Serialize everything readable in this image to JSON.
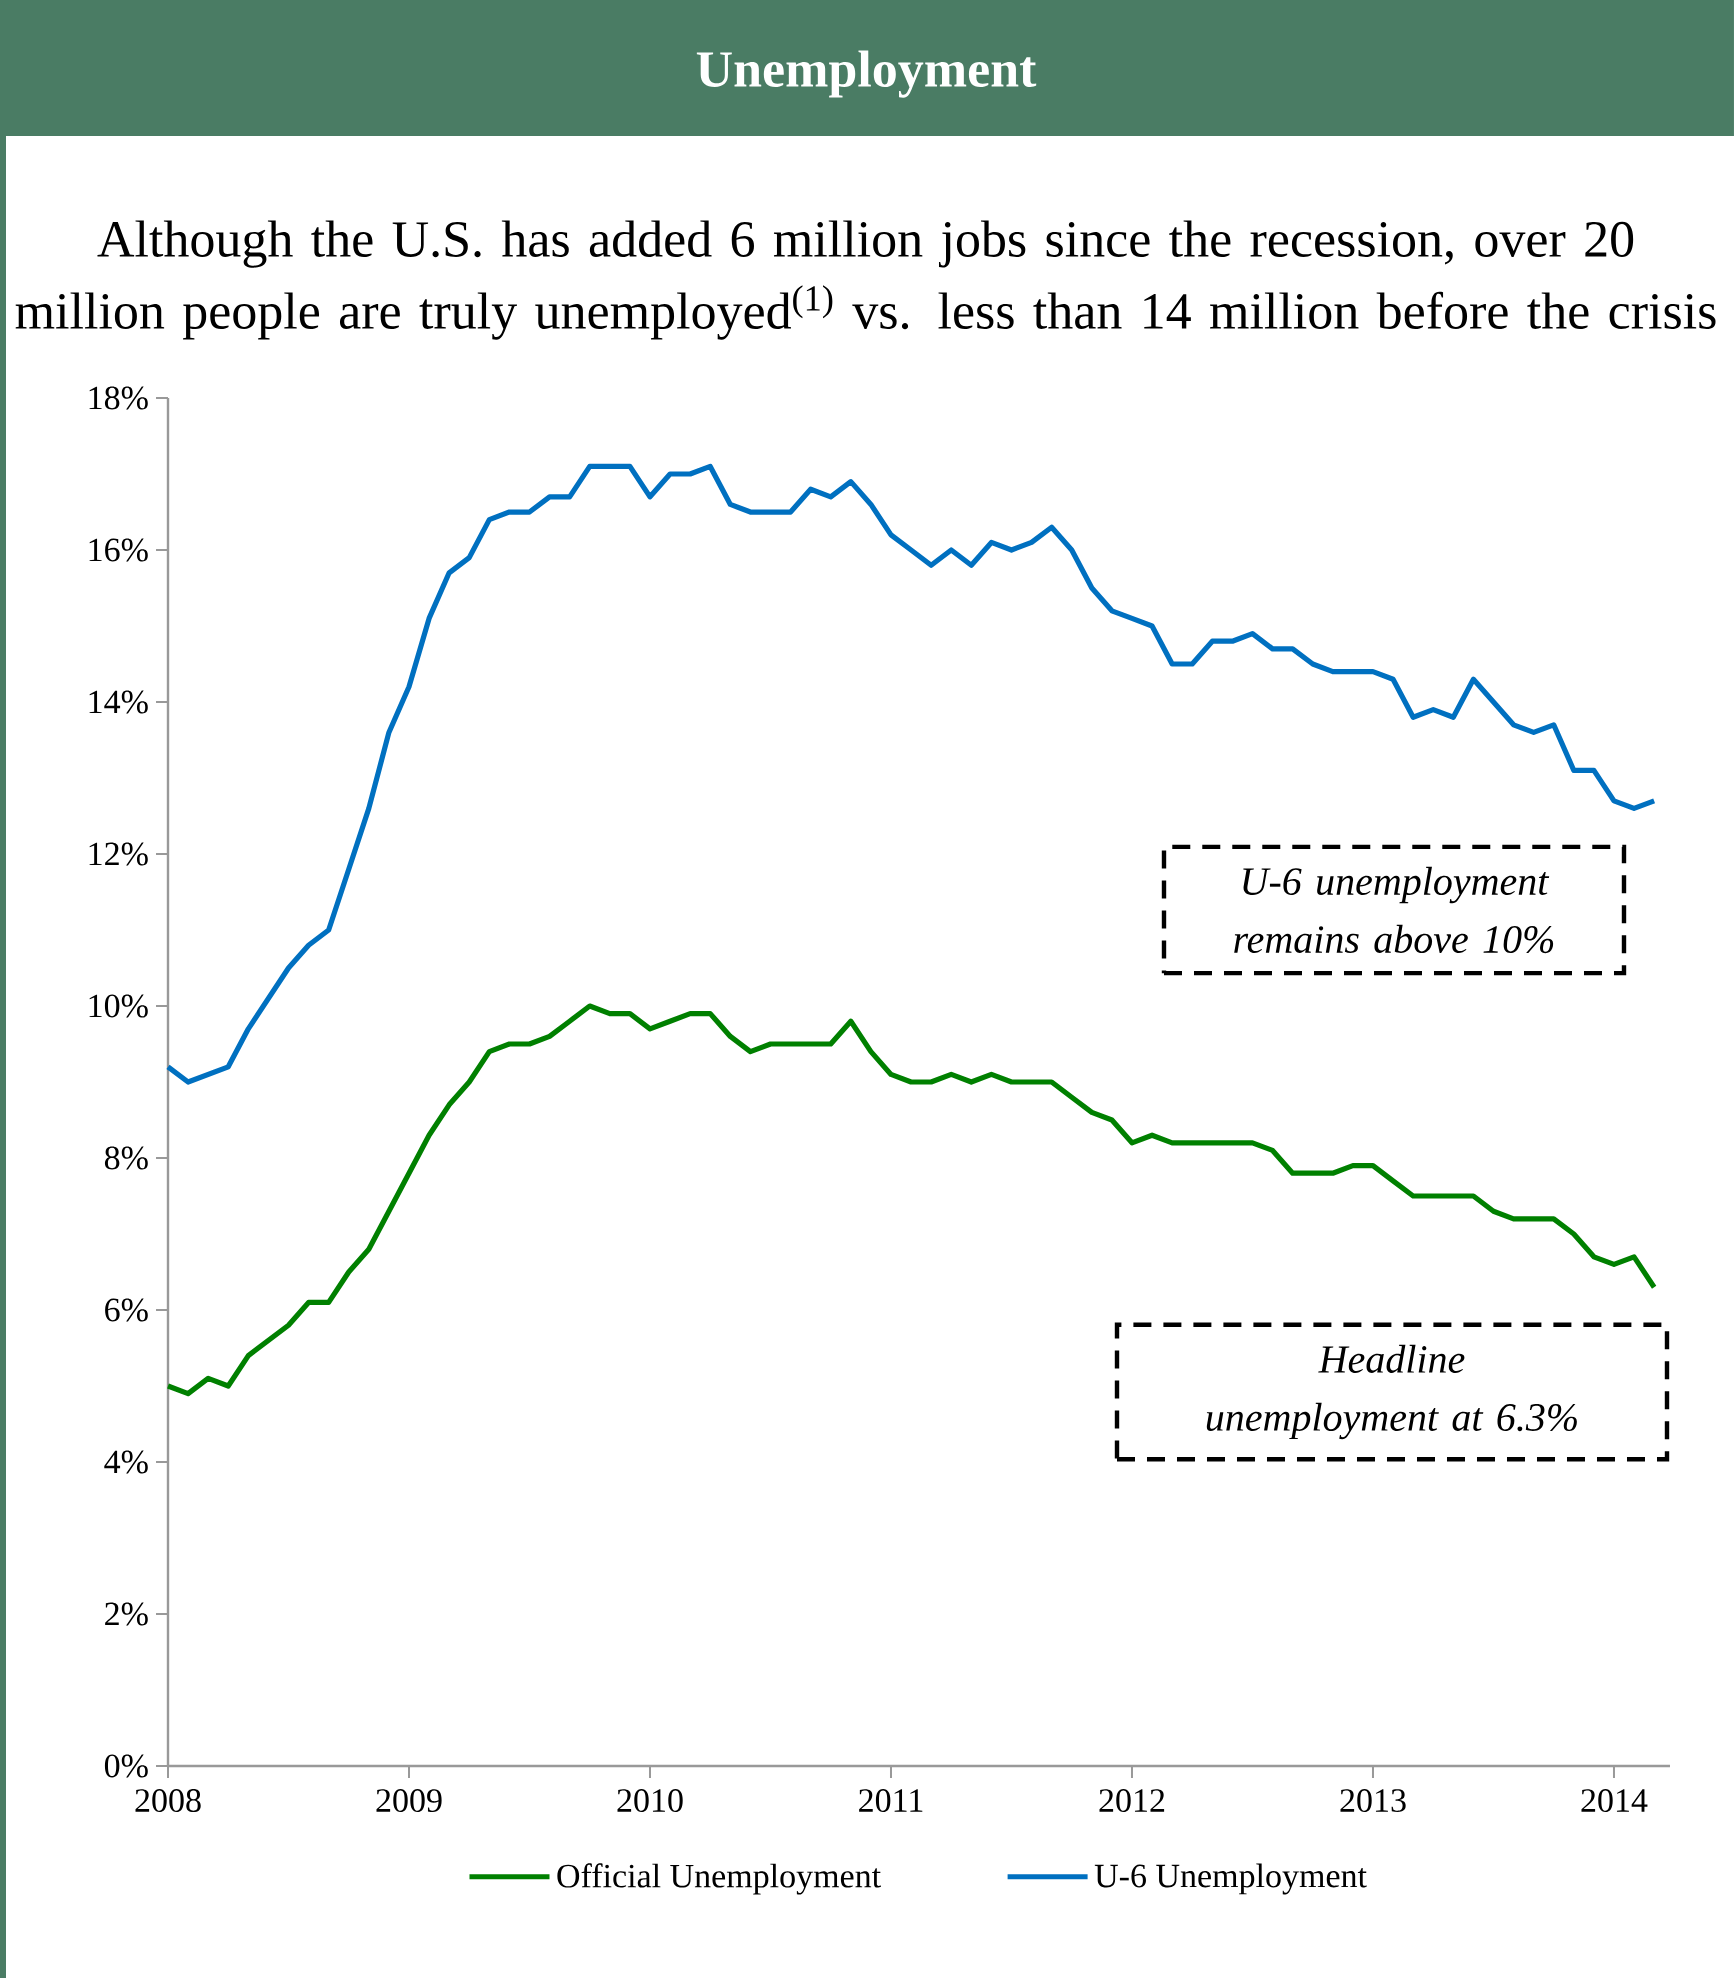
{
  "chart_data": {
    "type": "line",
    "title": "Unemployment",
    "subtitle": "Although the U.S. has added 6 million jobs since the recession, over 20 million people are truly unemployed$^{(1)}$ vs. less than 14 million before the crisis",
    "annotations": [
      "U-6 unemployment remains above 10%",
      "Headline unemployment at 6.3%"
    ],
    "x": [
      "2008-01",
      "2008-02",
      "2008-03",
      "2008-04",
      "2008-05",
      "2008-06",
      "2008-07",
      "2008-08",
      "2008-09",
      "2008-10",
      "2008-11",
      "2008-12",
      "2009-01",
      "2009-02",
      "2009-03",
      "2009-04",
      "2009-05",
      "2009-06",
      "2009-07",
      "2009-08",
      "2009-09",
      "2009-10",
      "2009-11",
      "2009-12",
      "2010-01",
      "2010-02",
      "2010-03",
      "2010-04",
      "2010-05",
      "2010-06",
      "2010-07",
      "2010-08",
      "2010-09",
      "2010-10",
      "2010-11",
      "2010-12",
      "2011-01",
      "2011-02",
      "2011-03",
      "2011-04",
      "2011-05",
      "2011-06",
      "2011-07",
      "2011-08",
      "2011-09",
      "2011-10",
      "2011-11",
      "2011-12",
      "2012-01",
      "2012-02",
      "2012-03",
      "2012-04",
      "2012-05",
      "2012-06",
      "2012-07",
      "2012-08",
      "2012-09",
      "2012-10",
      "2012-11",
      "2012-12",
      "2013-01",
      "2013-02",
      "2013-03",
      "2013-04",
      "2013-05",
      "2013-06",
      "2013-07",
      "2013-08",
      "2013-09",
      "2013-10",
      "2013-11",
      "2013-12",
      "2014-01",
      "2014-02",
      "2014-03"
    ],
    "series": [
      {
        "name": "Official Unemployment",
        "color": "#008000",
        "values": [
          5.0,
          4.9,
          5.1,
          5.0,
          5.4,
          5.6,
          5.8,
          6.1,
          6.1,
          6.5,
          6.8,
          7.3,
          7.8,
          8.3,
          8.7,
          9.0,
          9.4,
          9.5,
          9.5,
          9.6,
          9.8,
          10.0,
          9.9,
          9.9,
          9.7,
          9.8,
          9.9,
          9.9,
          9.6,
          9.4,
          9.5,
          9.5,
          9.5,
          9.5,
          9.8,
          9.4,
          9.1,
          9.0,
          9.0,
          9.1,
          9.0,
          9.1,
          9.0,
          9.0,
          9.0,
          8.8,
          8.6,
          8.5,
          8.2,
          8.3,
          8.2,
          8.2,
          8.2,
          8.2,
          8.2,
          8.1,
          7.8,
          7.8,
          7.8,
          7.9,
          7.9,
          7.7,
          7.5,
          7.5,
          7.5,
          7.5,
          7.3,
          7.2,
          7.2,
          7.2,
          7.0,
          6.7,
          6.6,
          6.7,
          6.3
        ]
      },
      {
        "name": "U-6 Unemployment",
        "color": "#0070c0",
        "values": [
          9.2,
          9.0,
          9.1,
          9.2,
          9.7,
          10.1,
          10.5,
          10.8,
          11.0,
          11.8,
          12.6,
          13.6,
          14.2,
          15.1,
          15.7,
          15.9,
          16.4,
          16.5,
          16.5,
          16.7,
          16.7,
          17.1,
          17.1,
          17.1,
          16.7,
          17.0,
          17.0,
          17.1,
          16.6,
          16.5,
          16.5,
          16.5,
          16.8,
          16.7,
          16.9,
          16.6,
          16.2,
          16.0,
          15.8,
          16.0,
          15.8,
          16.1,
          16.0,
          16.1,
          16.3,
          16.0,
          15.5,
          15.2,
          15.1,
          15.0,
          14.5,
          14.5,
          14.8,
          14.8,
          14.9,
          14.7,
          14.7,
          14.5,
          14.4,
          14.4,
          14.4,
          14.3,
          13.8,
          13.9,
          13.8,
          14.3,
          14.0,
          13.7,
          13.6,
          13.7,
          13.1,
          13.1,
          12.7,
          12.6,
          12.7
        ]
      }
    ],
    "xlim": [
      "2008-01-01",
      "2014-03-25"
    ],
    "xticks": [
      {
        "value": "2008-01-01",
        "label": "2008"
      },
      {
        "value": "2009-01-01",
        "label": "2009"
      },
      {
        "value": "2010-01-01",
        "label": "2010"
      },
      {
        "value": "2011-01-01",
        "label": "2011"
      },
      {
        "value": "2012-01-01",
        "label": "2012"
      },
      {
        "value": "2013-01-01",
        "label": "2013"
      },
      {
        "value": "2014-01-01",
        "label": "2014"
      }
    ],
    "ylim": [
      0,
      18
    ],
    "yticks": [
      {
        "value": 0,
        "label": "0%"
      },
      {
        "value": 2,
        "label": "2%"
      },
      {
        "value": 4,
        "label": "4%"
      },
      {
        "value": 6,
        "label": "6%"
      },
      {
        "value": 8,
        "label": "8%"
      },
      {
        "value": 10,
        "label": "10%"
      },
      {
        "value": 12,
        "label": "12%"
      },
      {
        "value": 14,
        "label": "14%"
      },
      {
        "value": 16,
        "label": "16%"
      },
      {
        "value": 18,
        "label": "18%"
      }
    ],
    "grid": false,
    "legend": "bottom",
    "marker": "none",
    "line_style": "solid"
  }
}
